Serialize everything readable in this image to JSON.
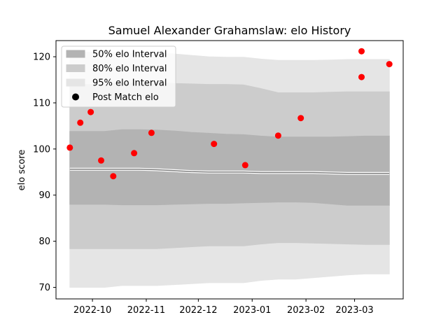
{
  "chart_data": {
    "type": "scatter",
    "title": "Samuel Alexander Grahamslaw: elo History",
    "xlabel": "",
    "ylabel": "elo score",
    "xlim": [
      "2022-09-10",
      "2023-03-29"
    ],
    "ylim": [
      67.5,
      123.5
    ],
    "x_ticks": [
      "2022-10",
      "2022-11",
      "2022-12",
      "2023-01",
      "2023-02",
      "2023-03"
    ],
    "y_ticks": [
      70,
      80,
      90,
      100,
      110,
      120
    ],
    "band_dates": [
      "2022-09-18",
      "2022-09-28",
      "2022-10-08",
      "2022-10-18",
      "2022-10-28",
      "2022-11-07",
      "2022-11-17",
      "2022-11-27",
      "2022-12-07",
      "2022-12-17",
      "2022-12-27",
      "2023-01-06",
      "2023-01-16",
      "2023-01-26",
      "2023-02-05",
      "2023-02-15",
      "2023-02-25",
      "2023-03-07",
      "2023-03-17",
      "2023-03-21"
    ],
    "bands": [
      {
        "name": "95% elo Interval",
        "color": "#e5e5e5",
        "lower": [
          70.0,
          70.0,
          70.0,
          70.4,
          70.4,
          70.4,
          70.6,
          70.8,
          71.0,
          71.0,
          71.0,
          71.5,
          71.8,
          71.8,
          72.1,
          72.4,
          72.7,
          72.9,
          72.9,
          72.9
        ],
        "upper": [
          121.0,
          121.0,
          121.0,
          120.8,
          120.8,
          120.8,
          120.6,
          120.3,
          120.0,
          119.9,
          119.9,
          119.5,
          119.2,
          119.2,
          119.2,
          119.3,
          119.4,
          119.4,
          119.4,
          119.4
        ]
      },
      {
        "name": "80% elo Interval",
        "color": "#cccccc",
        "lower": [
          78.4,
          78.4,
          78.4,
          78.4,
          78.4,
          78.4,
          78.6,
          78.8,
          79.0,
          79.0,
          79.0,
          79.4,
          79.7,
          79.7,
          79.6,
          79.5,
          79.4,
          79.3,
          79.3,
          79.3
        ],
        "upper": [
          114.0,
          114.0,
          114.0,
          114.3,
          114.3,
          114.3,
          114.2,
          114.1,
          114.0,
          114.0,
          113.9,
          113.1,
          112.2,
          112.2,
          112.2,
          112.3,
          112.4,
          112.4,
          112.4,
          112.4
        ]
      },
      {
        "name": "50% elo Interval",
        "color": "#b3b3b3",
        "lower": [
          88.0,
          88.0,
          88.0,
          87.9,
          87.9,
          87.9,
          88.0,
          88.1,
          88.2,
          88.2,
          88.3,
          88.4,
          88.5,
          88.5,
          88.4,
          88.1,
          87.8,
          87.8,
          87.8,
          87.8
        ],
        "upper": [
          103.8,
          103.8,
          103.8,
          104.2,
          104.2,
          104.1,
          103.9,
          103.6,
          103.4,
          103.2,
          103.1,
          102.8,
          102.6,
          102.6,
          102.6,
          102.6,
          102.7,
          102.8,
          102.8,
          102.8
        ]
      }
    ],
    "mean_line": {
      "color": "#808080",
      "values": [
        95.6,
        95.6,
        95.6,
        95.6,
        95.6,
        95.5,
        95.3,
        95.1,
        95.0,
        95.0,
        95.0,
        94.9,
        94.9,
        94.9,
        94.9,
        94.8,
        94.7,
        94.7,
        94.7,
        94.7
      ]
    },
    "points": {
      "name": "Post Match elo",
      "color": "#ff0000",
      "x": [
        "2022-09-18",
        "2022-09-24",
        "2022-09-30",
        "2022-10-06",
        "2022-10-13",
        "2022-10-25",
        "2022-11-04",
        "2022-12-10",
        "2022-12-28",
        "2023-01-16",
        "2023-01-29",
        "2023-03-05",
        "2023-03-05",
        "2023-03-21"
      ],
      "y": [
        100.3,
        105.7,
        108.0,
        97.5,
        94.1,
        99.1,
        103.5,
        101.1,
        96.5,
        102.9,
        106.7,
        121.2,
        115.6,
        118.4
      ]
    },
    "legend": {
      "position": "top-left",
      "entries": [
        "50% elo Interval",
        "80% elo Interval",
        "95% elo Interval",
        "Post Match elo"
      ]
    },
    "grid": false
  }
}
